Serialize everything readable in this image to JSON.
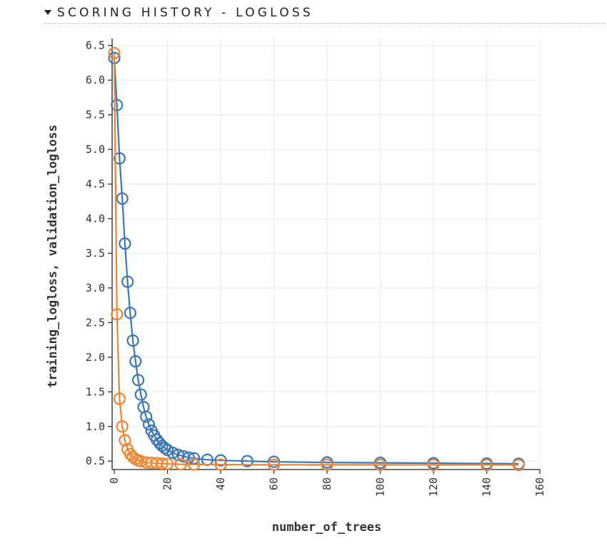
{
  "section": {
    "title": "SCORING HISTORY - LOGLOSS",
    "toggle_icon": "caret-down-icon"
  },
  "chart_data": {
    "type": "line",
    "xlabel": "number_of_trees",
    "ylabel": "training_logloss, validation_logloss",
    "xlim": [
      0,
      160
    ],
    "ylim": [
      0.43,
      6.6
    ],
    "x_ticks": [
      0,
      20,
      40,
      60,
      80,
      100,
      120,
      140,
      160
    ],
    "y_ticks": [
      0.5,
      1.0,
      1.5,
      2.0,
      2.5,
      3.0,
      3.5,
      4.0,
      4.5,
      5.0,
      5.5,
      6.0,
      6.5
    ],
    "grid": true,
    "markers": "hollow-circle",
    "series": [
      {
        "color": "#3b76b5",
        "points": [
          [
            0,
            6.32
          ],
          [
            1,
            5.64
          ],
          [
            2,
            4.87
          ],
          [
            3,
            4.29
          ],
          [
            4,
            3.64
          ],
          [
            5,
            3.09
          ],
          [
            6,
            2.64
          ],
          [
            7,
            2.24
          ],
          [
            8,
            1.94
          ],
          [
            9,
            1.67
          ],
          [
            10,
            1.46
          ],
          [
            11,
            1.28
          ],
          [
            12,
            1.14
          ],
          [
            13,
            1.03
          ],
          [
            14,
            0.94
          ],
          [
            15,
            0.87
          ],
          [
            16,
            0.81
          ],
          [
            17,
            0.76
          ],
          [
            18,
            0.72
          ],
          [
            19,
            0.69
          ],
          [
            20,
            0.66
          ],
          [
            22,
            0.62
          ],
          [
            24,
            0.59
          ],
          [
            26,
            0.57
          ],
          [
            28,
            0.55
          ],
          [
            30,
            0.54
          ],
          [
            35,
            0.52
          ],
          [
            40,
            0.51
          ],
          [
            50,
            0.5
          ],
          [
            60,
            0.49
          ],
          [
            80,
            0.48
          ],
          [
            100,
            0.475
          ],
          [
            120,
            0.47
          ],
          [
            140,
            0.465
          ],
          [
            152,
            0.463
          ]
        ]
      },
      {
        "color": "#ed8533",
        "points": [
          [
            0,
            6.39
          ],
          [
            1,
            2.62
          ],
          [
            2,
            1.4
          ],
          [
            3,
            1.0
          ],
          [
            4,
            0.8
          ],
          [
            5,
            0.67
          ],
          [
            6,
            0.6
          ],
          [
            7,
            0.56
          ],
          [
            8,
            0.53
          ],
          [
            9,
            0.51
          ],
          [
            10,
            0.5
          ],
          [
            12,
            0.48
          ],
          [
            14,
            0.475
          ],
          [
            16,
            0.47
          ],
          [
            18,
            0.465
          ],
          [
            20,
            0.46
          ],
          [
            25,
            0.455
          ],
          [
            30,
            0.452
          ],
          [
            40,
            0.45
          ],
          [
            60,
            0.448
          ],
          [
            80,
            0.447
          ],
          [
            100,
            0.446
          ],
          [
            120,
            0.445
          ],
          [
            140,
            0.445
          ],
          [
            152,
            0.444
          ]
        ]
      }
    ]
  }
}
